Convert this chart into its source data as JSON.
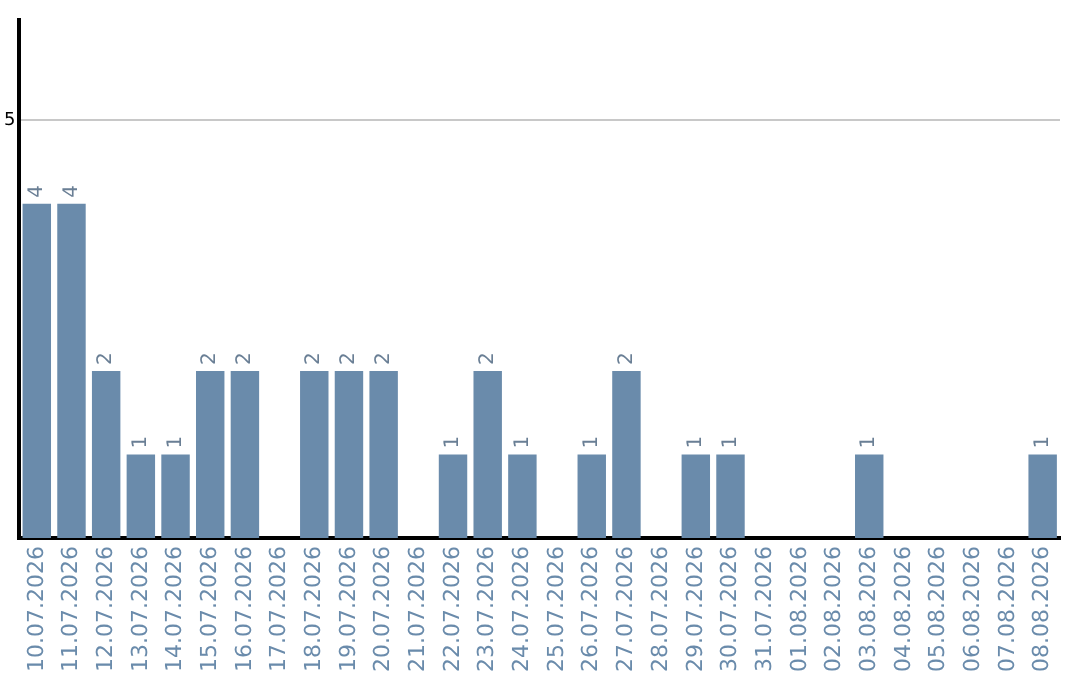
{
  "chart_data": {
    "type": "bar",
    "categories": [
      "10.07.2026",
      "11.07.2026",
      "12.07.2026",
      "13.07.2026",
      "14.07.2026",
      "15.07.2026",
      "16.07.2026",
      "17.07.2026",
      "18.07.2026",
      "19.07.2026",
      "20.07.2026",
      "21.07.2026",
      "22.07.2026",
      "23.07.2026",
      "24.07.2026",
      "25.07.2026",
      "26.07.2026",
      "27.07.2026",
      "28.07.2026",
      "29.07.2026",
      "30.07.2026",
      "31.07.2026",
      "01.08.2026",
      "02.08.2026",
      "03.08.2026",
      "04.08.2026",
      "05.08.2026",
      "06.08.2026",
      "07.08.2026",
      "08.08.2026"
    ],
    "values": [
      4,
      4,
      2,
      1,
      1,
      2,
      2,
      0,
      2,
      2,
      2,
      0,
      1,
      2,
      1,
      0,
      1,
      2,
      0,
      1,
      1,
      0,
      0,
      0,
      1,
      0,
      0,
      0,
      0,
      1
    ],
    "value_labels": [
      "4",
      "4",
      "2",
      "1",
      "1",
      "2",
      "2",
      null,
      "2",
      "2",
      "2",
      null,
      "1",
      "2",
      "1",
      null,
      "1",
      "2",
      null,
      "1",
      "1",
      null,
      null,
      null,
      "1",
      null,
      null,
      null,
      null,
      "1"
    ],
    "color": "#6a8bab",
    "ylim": [
      0,
      6.2
    ],
    "yticks": [
      5
    ],
    "grid": "y"
  }
}
